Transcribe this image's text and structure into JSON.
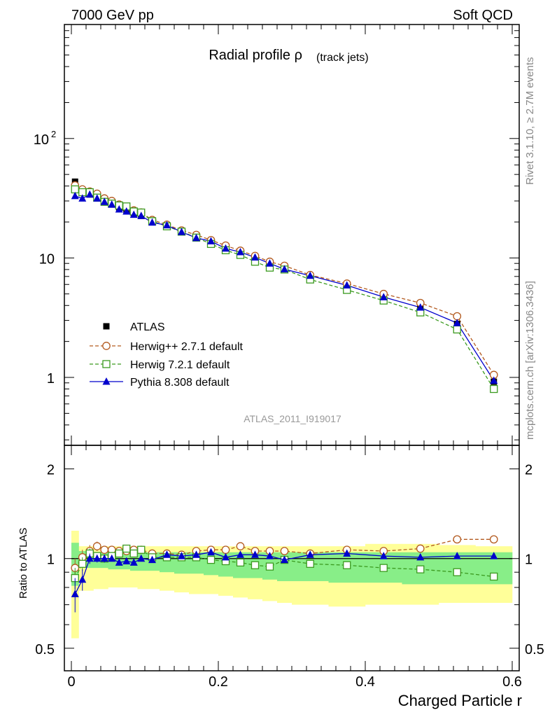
{
  "header": {
    "left": "7000 GeV pp",
    "right": "Soft QCD",
    "side_top": "Rivet 3.1.10, ≥ 2.7M events",
    "side_bottom": "mcplots.cern.ch [arXiv:1306.3436]"
  },
  "chart_data": [
    {
      "type": "line",
      "title_main": "Radial profile ρ",
      "title_sub": "(track jets)",
      "watermark": "ATLAS_2011_I919017",
      "yscale": "log",
      "ylim": [
        0.27,
        900
      ],
      "xlim": [
        -0.01,
        0.6
      ],
      "yticks": [
        {
          "v": 1,
          "label": "1"
        },
        {
          "v": 10,
          "label": "10"
        },
        {
          "v": 100,
          "label": "10",
          "sup": "2"
        }
      ],
      "legend_position": "lower-left",
      "x": [
        0.005,
        0.015,
        0.025,
        0.035,
        0.045,
        0.055,
        0.065,
        0.075,
        0.085,
        0.095,
        0.11,
        0.13,
        0.15,
        0.17,
        0.19,
        0.21,
        0.23,
        0.25,
        0.27,
        0.29,
        0.325,
        0.375,
        0.425,
        0.475,
        0.525,
        0.575
      ],
      "series": [
        {
          "name": "ATLAS",
          "style": "data",
          "color": "#000000",
          "values": [
            43.5,
            37,
            34,
            31.5,
            29.5,
            28,
            26.5,
            25,
            23.5,
            22.5,
            20,
            18.3,
            16.5,
            14.7,
            13.2,
            11.9,
            10.9,
            9.8,
            8.8,
            8.1,
            6.9,
            5.7,
            4.7,
            3.8,
            2.8,
            0.92
          ]
        },
        {
          "name": "Herwig++ 2.7.1 default",
          "style": "circle",
          "color": "#b35a1f",
          "values": [
            40.5,
            37.5,
            36,
            34.5,
            31.5,
            30,
            28,
            26.5,
            25,
            24,
            20.8,
            19,
            17,
            15.6,
            14.1,
            12.7,
            11.5,
            10.4,
            9.3,
            8.6,
            7.2,
            6.1,
            5,
            4.2,
            3.25,
            1.05
          ]
        },
        {
          "name": "Herwig 7.2.1 default",
          "style": "square",
          "color": "#3b9a1f",
          "values": [
            37.5,
            35.5,
            35.5,
            32,
            29.5,
            28.5,
            27.5,
            27,
            24.5,
            24,
            20.3,
            18.4,
            16.6,
            14.8,
            13.1,
            11.6,
            10.6,
            9.3,
            8.3,
            8,
            6.6,
            5.4,
            4.4,
            3.5,
            2.52,
            0.8
          ]
        },
        {
          "name": "Pythia 8.308 default",
          "style": "triangle",
          "color": "#0000cc",
          "values": [
            33,
            31.5,
            34,
            31.5,
            29.5,
            28,
            25.5,
            24.5,
            23,
            22.5,
            19.8,
            18.8,
            16.5,
            14.7,
            13.8,
            12,
            11.2,
            10.1,
            9,
            8.05,
            7.1,
            5.9,
            4.7,
            3.85,
            2.85,
            0.94
          ]
        }
      ]
    },
    {
      "type": "line",
      "ylabel": "Ratio to ATLAS",
      "xlabel": "Charged Particle r",
      "ylim": [
        0.42,
        2.4
      ],
      "yticks": [
        {
          "v": 0.5,
          "label": "0.5"
        },
        {
          "v": 1,
          "label": "1"
        },
        {
          "v": 2,
          "label": "2"
        }
      ],
      "xticks": [
        {
          "v": 0,
          "label": "0"
        },
        {
          "v": 0.2,
          "label": "0.2"
        },
        {
          "v": 0.4,
          "label": "0.4"
        },
        {
          "v": 0.6,
          "label": "0.6"
        }
      ],
      "bins": [
        [
          0,
          0.01
        ],
        [
          0.01,
          0.02
        ],
        [
          0.02,
          0.03
        ],
        [
          0.03,
          0.04
        ],
        [
          0.04,
          0.05
        ],
        [
          0.05,
          0.06
        ],
        [
          0.06,
          0.07
        ],
        [
          0.07,
          0.08
        ],
        [
          0.08,
          0.09
        ],
        [
          0.09,
          0.1
        ],
        [
          0.1,
          0.12
        ],
        [
          0.12,
          0.14
        ],
        [
          0.14,
          0.16
        ],
        [
          0.16,
          0.18
        ],
        [
          0.18,
          0.2
        ],
        [
          0.2,
          0.22
        ],
        [
          0.22,
          0.24
        ],
        [
          0.24,
          0.26
        ],
        [
          0.26,
          0.28
        ],
        [
          0.28,
          0.3
        ],
        [
          0.3,
          0.35
        ],
        [
          0.35,
          0.4
        ],
        [
          0.4,
          0.45
        ],
        [
          0.45,
          0.5
        ],
        [
          0.5,
          0.55
        ],
        [
          0.55,
          0.6
        ]
      ],
      "band_yellow": [
        [
          0.54,
          1.24
        ],
        [
          0.78,
          1.1
        ],
        [
          0.78,
          1.1
        ],
        [
          0.79,
          1.1
        ],
        [
          0.79,
          1.1
        ],
        [
          0.8,
          1.1
        ],
        [
          0.8,
          1.1
        ],
        [
          0.8,
          1.1
        ],
        [
          0.8,
          1.1
        ],
        [
          0.79,
          1.1
        ],
        [
          0.79,
          1.1
        ],
        [
          0.78,
          1.1
        ],
        [
          0.77,
          1.1
        ],
        [
          0.76,
          1.1
        ],
        [
          0.76,
          1.1
        ],
        [
          0.75,
          1.1
        ],
        [
          0.74,
          1.1
        ],
        [
          0.73,
          1.1
        ],
        [
          0.72,
          1.1
        ],
        [
          0.71,
          1.1
        ],
        [
          0.7,
          1.1
        ],
        [
          0.69,
          1.1
        ],
        [
          0.7,
          1.12
        ],
        [
          0.7,
          1.12
        ],
        [
          0.71,
          1.11
        ],
        [
          0.71,
          1.1
        ]
      ],
      "band_green": [
        [
          0.81,
          1.13
        ],
        [
          0.94,
          1.06
        ],
        [
          0.93,
          1.06
        ],
        [
          0.93,
          1.05
        ],
        [
          0.93,
          1.05
        ],
        [
          0.92,
          1.05
        ],
        [
          0.92,
          1.05
        ],
        [
          0.92,
          1.05
        ],
        [
          0.91,
          1.05
        ],
        [
          0.91,
          1.05
        ],
        [
          0.91,
          1.05
        ],
        [
          0.9,
          1.05
        ],
        [
          0.89,
          1.05
        ],
        [
          0.89,
          1.05
        ],
        [
          0.88,
          1.05
        ],
        [
          0.87,
          1.05
        ],
        [
          0.86,
          1.05
        ],
        [
          0.86,
          1.05
        ],
        [
          0.85,
          1.05
        ],
        [
          0.84,
          1.05
        ],
        [
          0.84,
          1.05
        ],
        [
          0.83,
          1.05
        ],
        [
          0.83,
          1.05
        ],
        [
          0.82,
          1.05
        ],
        [
          0.82,
          1.05
        ],
        [
          0.82,
          1.05
        ]
      ],
      "series": [
        {
          "name": "Herwig++ 2.7.1 default",
          "style": "circle",
          "color": "#b35a1f",
          "values": [
            0.93,
            1.01,
            1.06,
            1.1,
            1.07,
            1.07,
            1.06,
            1.06,
            1.07,
            1.07,
            1.04,
            1.04,
            1.03,
            1.06,
            1.07,
            1.07,
            1.1,
            1.06,
            1.06,
            1.06,
            1.04,
            1.07,
            1.06,
            1.08,
            1.16,
            1.16
          ]
        },
        {
          "name": "Herwig 7.2.1 default",
          "style": "square",
          "color": "#3b9a1f",
          "values": [
            0.86,
            0.96,
            1.04,
            1.02,
            1,
            1.02,
            1.04,
            1.08,
            1.04,
            1.07,
            1.01,
            1.01,
            1.01,
            1.01,
            0.99,
            0.98,
            0.97,
            0.95,
            0.94,
            0.99,
            0.96,
            0.95,
            0.93,
            0.92,
            0.9,
            0.87
          ]
        },
        {
          "name": "Pythia 8.308 default",
          "style": "triangle",
          "color": "#0000cc",
          "values": [
            0.76,
            0.85,
            1,
            1,
            1,
            1,
            0.97,
            0.98,
            0.97,
            1,
            0.99,
            1.03,
            1.02,
            1.03,
            1.05,
            1.01,
            1.03,
            1.03,
            1.02,
            0.99,
            1.03,
            1.04,
            1.02,
            1.01,
            1.02,
            1.02
          ]
        }
      ],
      "errors": {
        "Herwig++ 2.7.1 default": [
          0.07,
          0.06,
          0.05,
          0.04,
          0.03,
          0.02,
          0.02,
          0.02,
          0.02,
          0.02,
          0.02,
          0.02,
          0.02,
          0.02,
          0.02,
          0.02,
          0.02,
          0.02,
          0.02,
          0.02,
          0.02,
          0.02,
          0.02,
          0.02,
          0.02,
          0.02
        ],
        "Herwig 7.2.1 default": [
          0.07,
          0.05,
          0.04,
          0.03,
          0.03,
          0.02,
          0.02,
          0.02,
          0.02,
          0.02,
          0.02,
          0.02,
          0.02,
          0.02,
          0.02,
          0.02,
          0.02,
          0.02,
          0.02,
          0.02,
          0.02,
          0.02,
          0.02,
          0.02,
          0.02,
          0.02
        ],
        "Pythia 8.308 default": [
          0.1,
          0.07,
          0.04,
          0.03,
          0.03,
          0.02,
          0.02,
          0.02,
          0.02,
          0.02,
          0.02,
          0.02,
          0.02,
          0.02,
          0.02,
          0.02,
          0.02,
          0.02,
          0.02,
          0.02,
          0.02,
          0.02,
          0.02,
          0.02,
          0.02,
          0.02
        ]
      }
    }
  ]
}
